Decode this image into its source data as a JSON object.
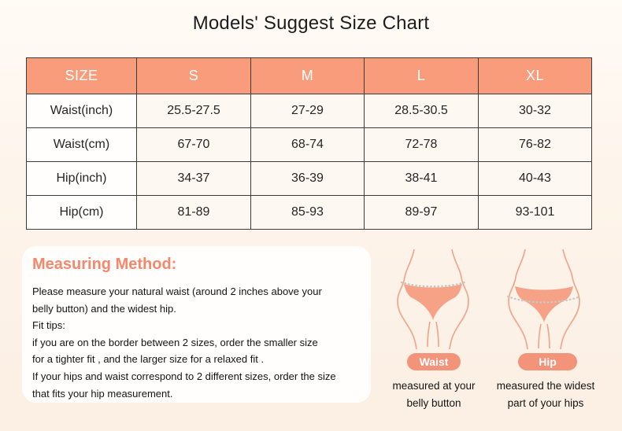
{
  "page": {
    "title": "Models' Suggest Size Chart"
  },
  "chart_data": {
    "type": "table",
    "title": "Models' Suggest Size Chart",
    "columns": [
      "SIZE",
      "S",
      "M",
      "L",
      "XL"
    ],
    "rows": [
      [
        "Waist(inch)",
        "25.5-27.5",
        "27-29",
        "28.5-30.5",
        "30-32"
      ],
      [
        "Waist(cm)",
        "67-70",
        "68-74",
        "72-78",
        "76-82"
      ],
      [
        "Hip(inch)",
        "34-37",
        "36-39",
        "38-41",
        "40-43"
      ],
      [
        "Hip(cm)",
        "81-89",
        "85-93",
        "89-97",
        "93-101"
      ]
    ]
  },
  "size_table": {
    "header": [
      "SIZE",
      "S",
      "M",
      "L",
      "XL"
    ],
    "rows": [
      {
        "label": "Waist(inch)",
        "values": [
          "25.5-27.5",
          "27-29",
          "28.5-30.5",
          "30-32"
        ]
      },
      {
        "label": "Waist(cm)",
        "values": [
          "67-70",
          "68-74",
          "72-78",
          "76-82"
        ]
      },
      {
        "label": "Hip(inch)",
        "values": [
          "34-37",
          "36-39",
          "38-41",
          "40-43"
        ]
      },
      {
        "label": "Hip(cm)",
        "values": [
          "81-89",
          "85-93",
          "89-97",
          "93-101"
        ]
      }
    ]
  },
  "measuring_method": {
    "title": "Measuring Method:",
    "lines": [
      "Please measure your natural waist (around 2 inches above your",
      "belly button) and the widest hip.",
      "Fit tips:",
      "if you are on the border between 2 sizes, order the smaller size",
      "for a tighter fit , and the larger size for a relaxed fit .",
      "If your hips and waist correspond to 2 different sizes, order the size",
      "that fits your hip measurement."
    ]
  },
  "diagrams": {
    "waist": {
      "badge": "Waist",
      "caption_lines": [
        "measured at your",
        "belly button"
      ]
    },
    "hip": {
      "badge": "Hip",
      "caption_lines": [
        "measured the widest",
        "part of your hips"
      ]
    }
  },
  "colors": {
    "table_header_salmon": "#F89C7C",
    "badge_salmon": "#F2937A",
    "method_title_salmon": "#F5876C",
    "panty_salmon": "#F6A287",
    "table_border": "#3C3C3C",
    "background_cream": "#FCEFE3",
    "text_ink": "#1D1D1F"
  }
}
